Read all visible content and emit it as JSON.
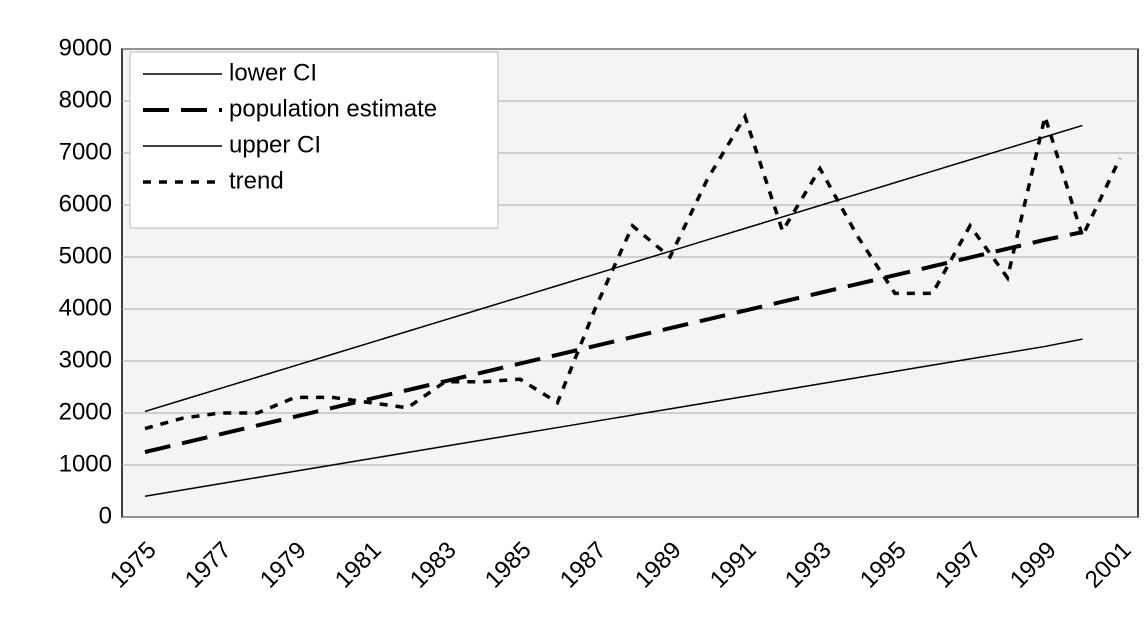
{
  "chart_data": {
    "type": "line",
    "categories": [
      "1975",
      null,
      "1977",
      null,
      "1979",
      null,
      "1981",
      null,
      "1983",
      null,
      "1985",
      null,
      "1987",
      null,
      "1989",
      null,
      "1991",
      null,
      "1993",
      null,
      "1995",
      null,
      "1997",
      null,
      "1999",
      null,
      "2001"
    ],
    "series": [
      {
        "name": "lower CI",
        "color": "#000000",
        "style": "solid",
        "values": [
          400,
          520,
          640,
          760,
          880,
          1000,
          1120,
          1240,
          1360,
          1480,
          1600,
          1720,
          1840,
          1960,
          2080,
          2200,
          2320,
          2440,
          2560,
          2680,
          2800,
          2920,
          3040,
          3160,
          3280,
          3420,
          null
        ]
      },
      {
        "name": "population estimate",
        "color": "#000000",
        "style": "dashed",
        "values": [
          1250,
          1420,
          1590,
          1760,
          1930,
          2100,
          2270,
          2440,
          2610,
          2780,
          2950,
          3120,
          3290,
          3460,
          3630,
          3800,
          3970,
          4140,
          4310,
          4480,
          4650,
          4820,
          4990,
          5160,
          5330,
          5480,
          null
        ]
      },
      {
        "name": "upper CI",
        "color": "#000000",
        "style": "solid",
        "values": [
          2030,
          2250,
          2470,
          2690,
          2910,
          3130,
          3350,
          3570,
          3790,
          4010,
          4230,
          4450,
          4670,
          4890,
          5110,
          5330,
          5550,
          5770,
          5990,
          6210,
          6430,
          6650,
          6870,
          7090,
          7310,
          7530,
          null
        ]
      },
      {
        "name": "trend",
        "color": "#000000",
        "style": "dotted",
        "values": [
          1700,
          1900,
          2000,
          2000,
          2300,
          2300,
          2200,
          2100,
          2600,
          2600,
          2650,
          2200,
          4000,
          5600,
          5000,
          6500,
          7700,
          5500,
          6700,
          5400,
          4300,
          4300,
          5600,
          4600,
          7700,
          5400,
          6900
        ]
      }
    ],
    "ylim": [
      0,
      9000
    ],
    "yticks": [
      0,
      1000,
      2000,
      3000,
      4000,
      5000,
      6000,
      7000,
      8000,
      9000
    ],
    "grid": true,
    "legend": "upper left"
  }
}
